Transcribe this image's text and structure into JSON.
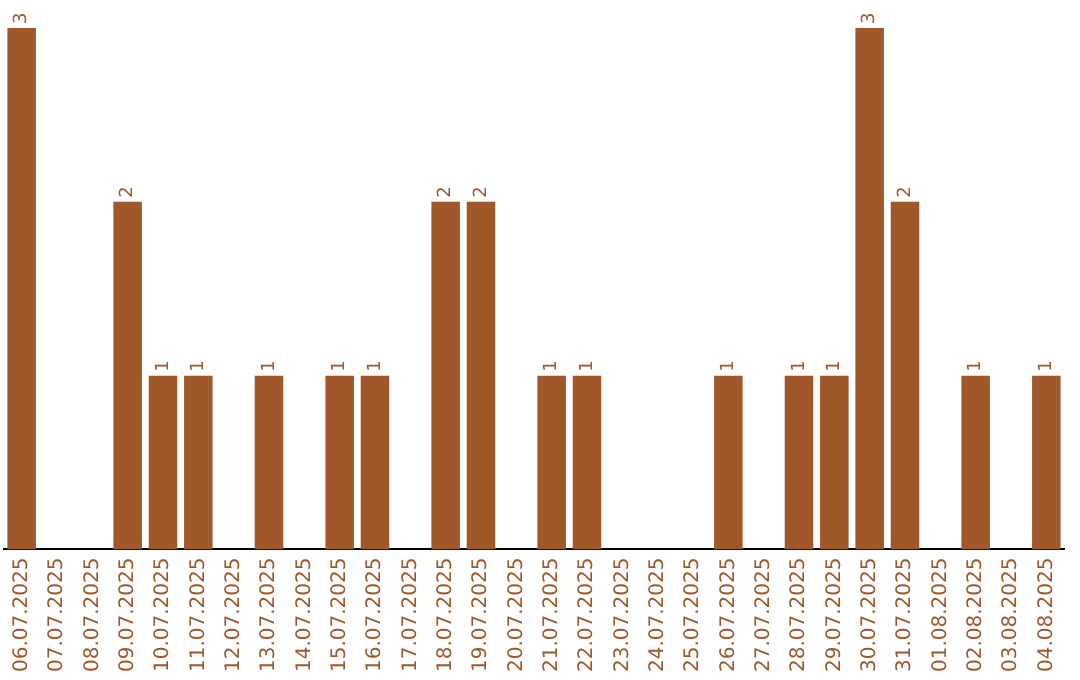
{
  "chart_data": {
    "type": "bar",
    "categories": [
      "06.07.2025",
      "07.07.2025",
      "08.07.2025",
      "09.07.2025",
      "10.07.2025",
      "11.07.2025",
      "12.07.2025",
      "13.07.2025",
      "14.07.2025",
      "15.07.2025",
      "16.07.2025",
      "17.07.2025",
      "18.07.2025",
      "19.07.2025",
      "20.07.2025",
      "21.07.2025",
      "22.07.2025",
      "23.07.2025",
      "24.07.2025",
      "25.07.2025",
      "26.07.2025",
      "27.07.2025",
      "28.07.2025",
      "29.07.2025",
      "30.07.2025",
      "31.07.2025",
      "01.08.2025",
      "02.08.2025",
      "03.08.2025",
      "04.08.2025"
    ],
    "values": [
      3,
      0,
      0,
      2,
      1,
      1,
      0,
      1,
      0,
      1,
      1,
      0,
      2,
      2,
      0,
      1,
      1,
      0,
      0,
      0,
      1,
      0,
      1,
      1,
      3,
      2,
      0,
      1,
      0,
      1
    ],
    "value_labels": [
      "3",
      null,
      null,
      "2",
      "1",
      "1",
      null,
      "1",
      null,
      "1",
      "1",
      null,
      "2",
      "2",
      null,
      "1",
      "1",
      null,
      null,
      null,
      "1",
      null,
      "1",
      "1",
      "3",
      "2",
      null,
      "1",
      null,
      "1"
    ],
    "color": "#a0572a",
    "grid": false,
    "legend": false
  }
}
